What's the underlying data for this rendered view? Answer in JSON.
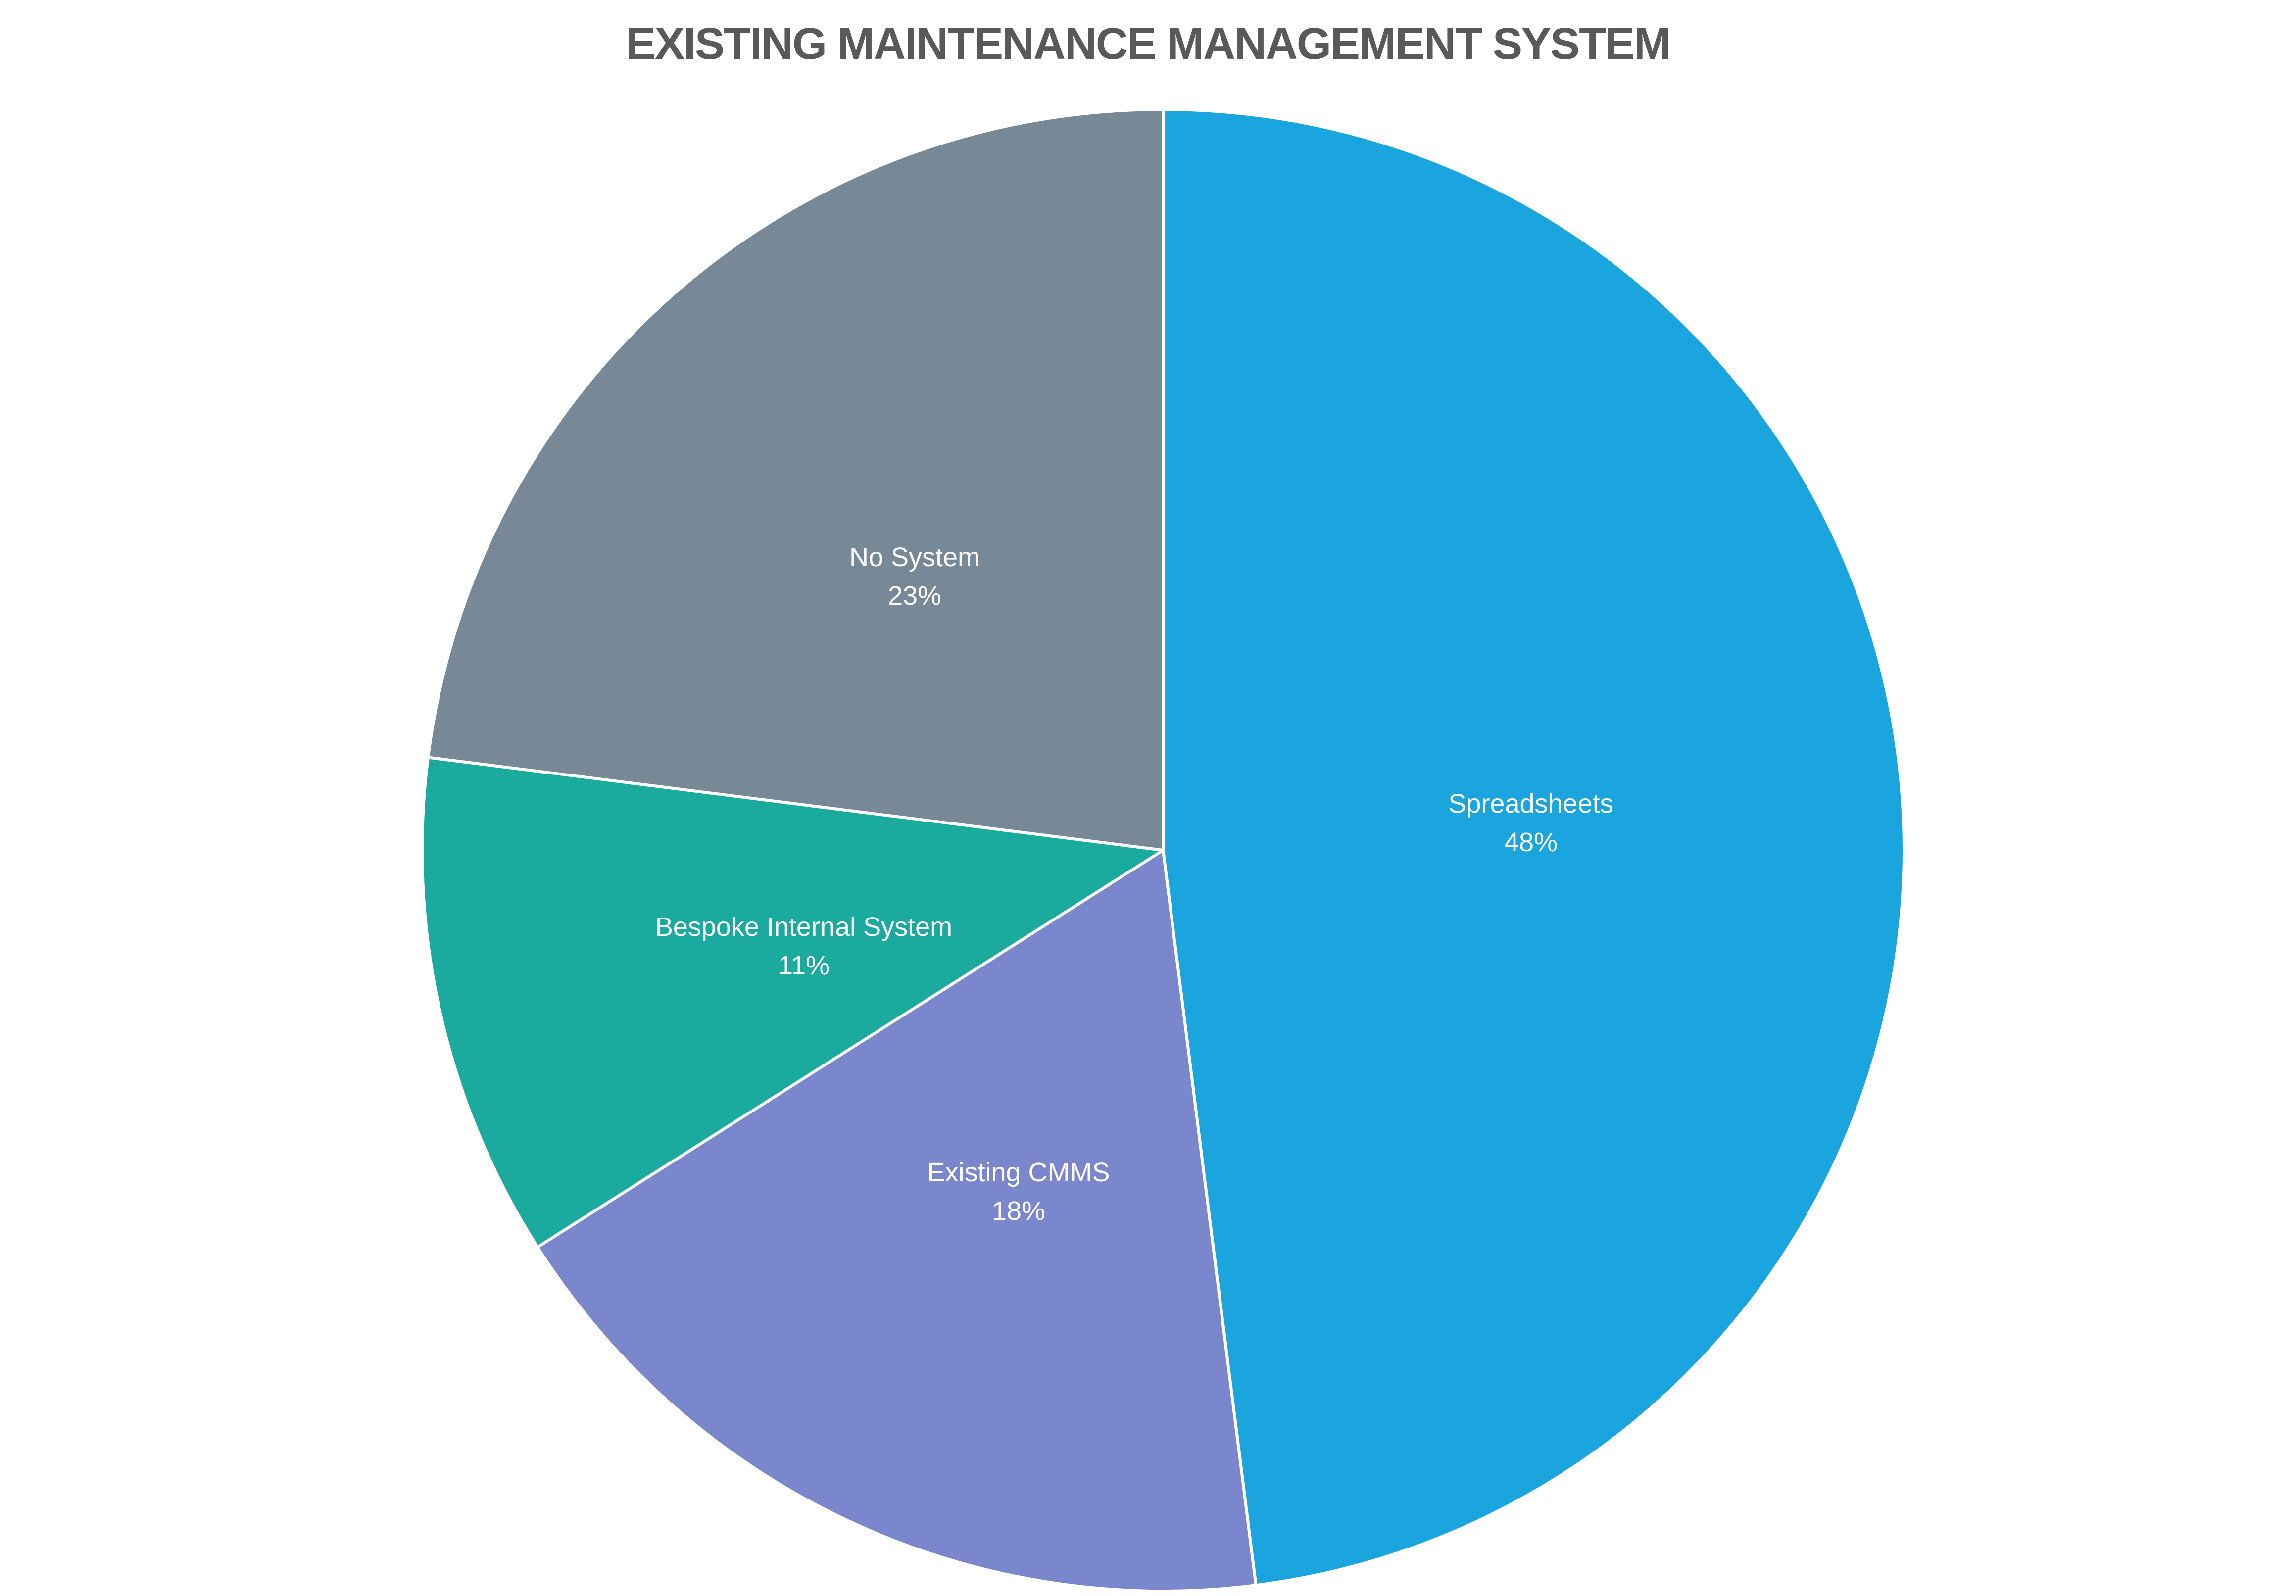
{
  "title": "EXISTING MAINTENANCE MANAGEMENT SYSTEM",
  "chart_data": {
    "type": "pie",
    "title": "EXISTING MAINTENANCE MANAGEMENT SYSTEM",
    "categories": [
      "Spreadsheets",
      "Existing CMMS",
      "Bespoke Internal System",
      "No System"
    ],
    "values": [
      48,
      18,
      11,
      23
    ],
    "unit": "%",
    "colors": [
      "#1BA5DE",
      "#7A87CC",
      "#1AAB9E",
      "#778896"
    ],
    "start_angle": "12 o'clock, clockwise",
    "legend": "none (data labels inside slices)"
  },
  "slices": [
    {
      "name": "Spreadsheets",
      "pct": "48%",
      "color": "#1BA5DE"
    },
    {
      "name": "Existing CMMS",
      "pct": "18%",
      "color": "#7A87CC"
    },
    {
      "name": "Bespoke Internal System",
      "pct": "11%",
      "color": "#1AAB9E"
    },
    {
      "name": "No System",
      "pct": "23%",
      "color": "#778896"
    }
  ]
}
